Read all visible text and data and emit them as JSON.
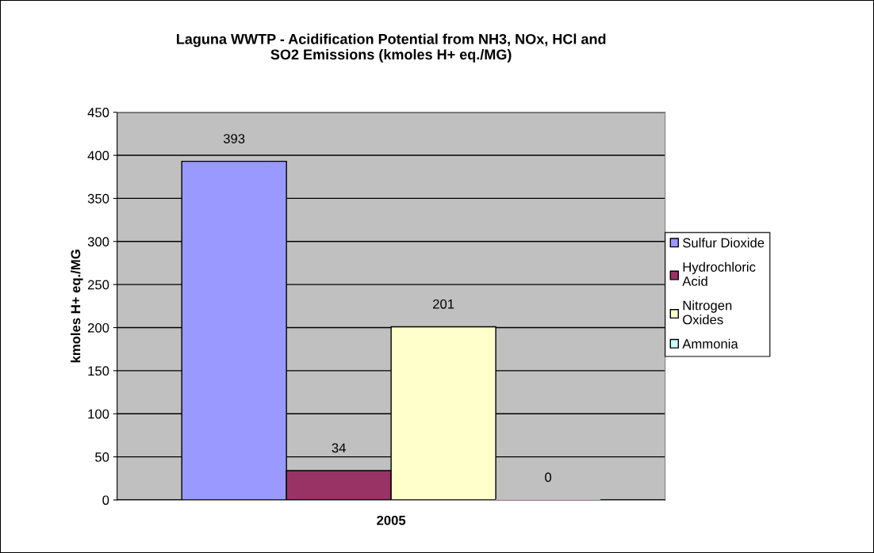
{
  "chart_data": {
    "type": "bar",
    "title": "Laguna WWTP - Acidification Potential from NH3, NOx, HCl and\nSO2 Emissions (kmoles H+ eq./MG)",
    "ylabel": "kmoles H+ eq./MG",
    "categories": [
      "2005"
    ],
    "series": [
      {
        "name": "Sulfur Dioxide",
        "color": "#9999ff",
        "values": [
          393
        ]
      },
      {
        "name": "Hydrochloric\nAcid",
        "color": "#993366",
        "values": [
          34
        ]
      },
      {
        "name": "Nitrogen\nOxides",
        "color": "#ffffcc",
        "values": [
          201
        ]
      },
      {
        "name": "Ammonia",
        "color": "#ccffff",
        "values": [
          0
        ]
      }
    ],
    "ylim": [
      0,
      450
    ],
    "yticks": [
      0,
      50,
      100,
      150,
      200,
      250,
      300,
      350,
      400,
      450
    ],
    "grid": "y",
    "legend": "right",
    "data_labels": true
  }
}
